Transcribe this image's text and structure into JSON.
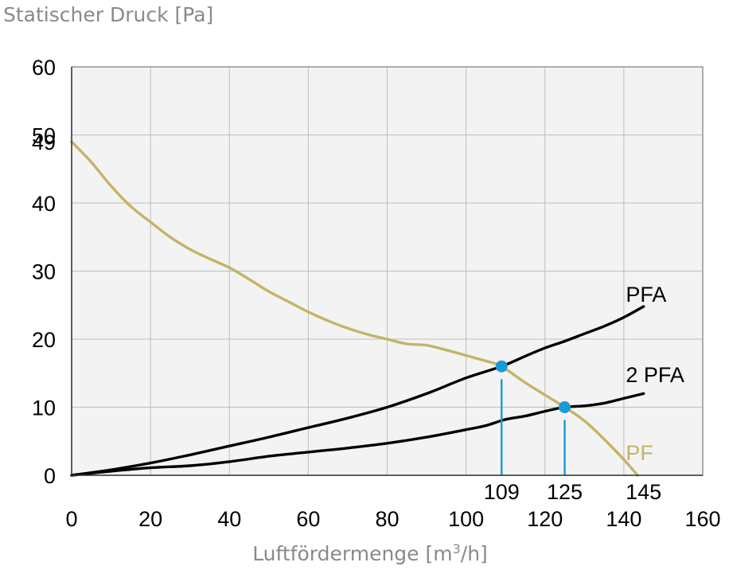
{
  "chart_data": {
    "type": "line",
    "title": "",
    "ylabel": "Statischer Druck [Pa]",
    "xlabel": {
      "prefix": "Luftfördermenge [m",
      "sup": "3",
      "suffix": "/h]"
    },
    "xlim": [
      0,
      160
    ],
    "ylim": [
      0,
      60
    ],
    "xticks": [
      "0",
      "20",
      "40",
      "60",
      "80",
      "100",
      "120",
      "140",
      "160"
    ],
    "yticks": [
      "0",
      "10",
      "20",
      "30",
      "40",
      "50",
      "60"
    ],
    "grid": true,
    "plot_background": "#f3f3f3",
    "grid_color": "#bdbdbd",
    "series": [
      {
        "name": "PF",
        "color": "#c4b468",
        "x": [
          0,
          5,
          10,
          15,
          20,
          25,
          30,
          35,
          40,
          45,
          50,
          55,
          60,
          65,
          70,
          75,
          80,
          85,
          90,
          95,
          100,
          105,
          109,
          115,
          120,
          125,
          130,
          135,
          140,
          143.5
        ],
        "y": [
          49,
          46,
          42.5,
          39.5,
          37.2,
          35,
          33.2,
          31.8,
          30.5,
          28.8,
          27,
          25.5,
          24,
          22.7,
          21.6,
          20.7,
          20,
          19.3,
          19.1,
          18.4,
          17.6,
          16.8,
          16,
          13.6,
          11.8,
          10,
          8,
          5.3,
          2.3,
          0
        ]
      },
      {
        "name": "PFA",
        "color": "#000000",
        "x": [
          0,
          10,
          20,
          30,
          40,
          50,
          60,
          70,
          80,
          90,
          100,
          109,
          115,
          120,
          125,
          130,
          135,
          140,
          145
        ],
        "y": [
          0,
          0.8,
          1.8,
          3,
          4.3,
          5.6,
          7,
          8.4,
          10,
          12,
          14.3,
          16,
          17.5,
          18.7,
          19.7,
          20.8,
          21.9,
          23.2,
          24.8
        ]
      },
      {
        "name": "2 PFA",
        "color": "#000000",
        "x": [
          0,
          10,
          20,
          30,
          40,
          50,
          60,
          70,
          80,
          90,
          100,
          105,
          110,
          115,
          120,
          125,
          130,
          135,
          140,
          145
        ],
        "y": [
          0,
          0.6,
          1.1,
          1.4,
          2,
          2.8,
          3.4,
          4,
          4.7,
          5.6,
          6.7,
          7.3,
          8.2,
          8.7,
          9.4,
          10,
          10.2,
          10.6,
          11.3,
          12
        ]
      }
    ],
    "markers": [
      {
        "x": 109,
        "y": 16,
        "label": "109"
      },
      {
        "x": 125,
        "y": 10,
        "label": "125"
      }
    ],
    "marker_color": "#1a9ad6",
    "annotations": [
      {
        "text": "49",
        "y": 49
      },
      {
        "text": "145",
        "x": 145
      }
    ]
  }
}
